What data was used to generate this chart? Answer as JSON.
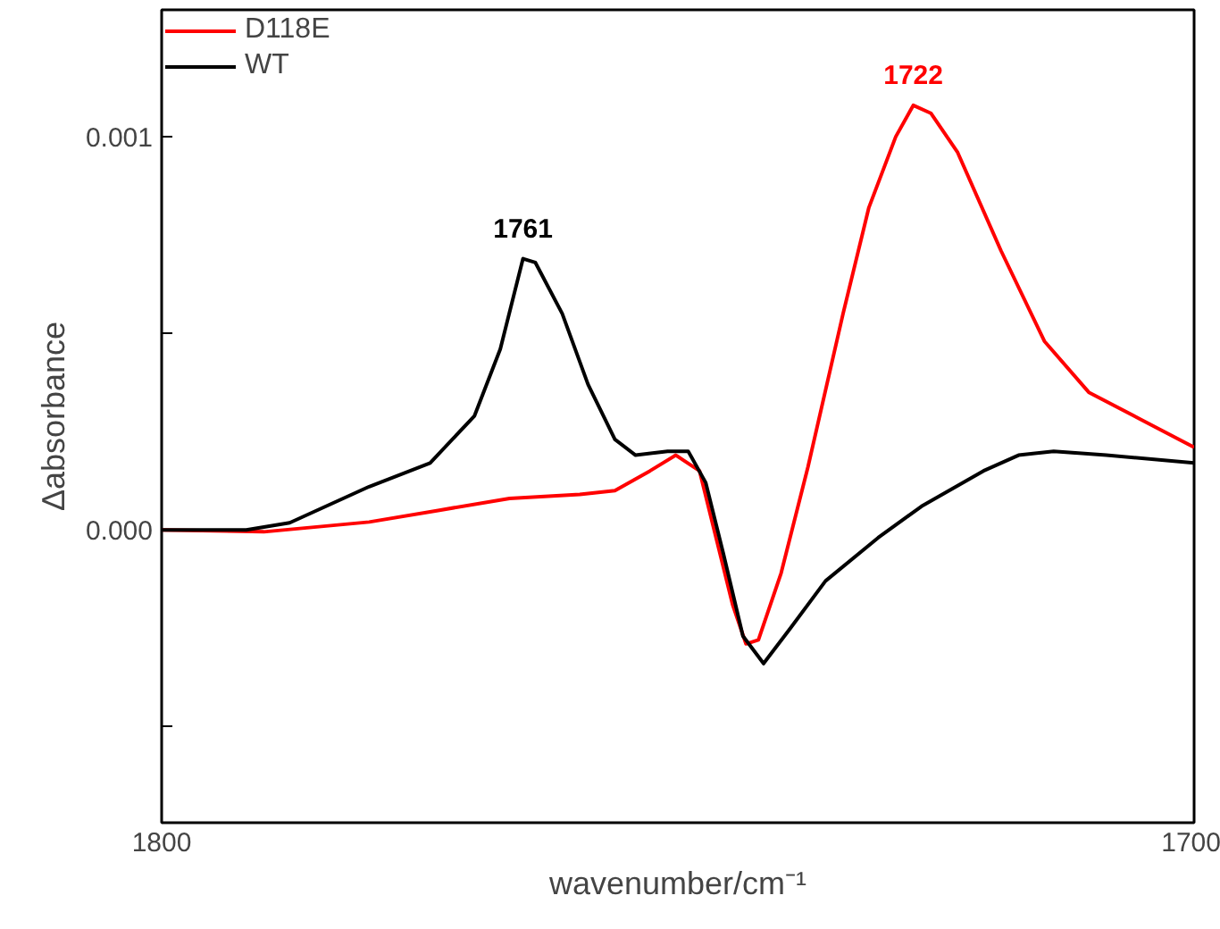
{
  "chart_data": {
    "type": "line",
    "xlabel": "wavenumber/cm⁻¹",
    "ylabel": "Δabsorbance",
    "xlim": [
      1800,
      1700
    ],
    "xticks": [
      1800,
      1700
    ],
    "ylim": [
      -0.000745,
      0.001323
    ],
    "yticks": [
      {
        "value": -0.0005,
        "label": null
      },
      {
        "value": 0,
        "label": "0.000"
      },
      {
        "value": 0.0005,
        "label": null
      },
      {
        "value": 0.001,
        "label": "0.001"
      }
    ],
    "grid": false,
    "legend": "top left",
    "marker": "none",
    "line_style": "solid",
    "series": [
      {
        "name": "D118E",
        "color": "#ff0000",
        "x": [
          1800,
          1790.1,
          1779.9,
          1773.1,
          1766.3,
          1759.5,
          1756.1,
          1752.7,
          1750.2,
          1747.9,
          1746.3,
          1744.7,
          1743.4,
          1742.2,
          1740.0,
          1737.4,
          1734.0,
          1731.5,
          1728.9,
          1727.2,
          1725.5,
          1722.9,
          1718.7,
          1714.5,
          1710.2,
          1705.1,
          1700
        ],
        "values": [
          0,
          -5e-06,
          2e-05,
          5e-05,
          8e-05,
          9e-05,
          0.0001,
          0.00015,
          0.00019,
          0.00015,
          -2e-05,
          -0.00019,
          -0.00029,
          -0.00028,
          -0.00011,
          0.00016,
          0.00055,
          0.00082,
          0.001,
          0.00108,
          0.00106,
          0.00096,
          0.00071,
          0.00048,
          0.00035,
          0.00028,
          0.00021
        ]
      },
      {
        "name": "WT",
        "color": "#000000",
        "x": [
          1800,
          1791.8,
          1787.6,
          1779.9,
          1774.0,
          1769.7,
          1767.2,
          1765.0,
          1763.8,
          1761.2,
          1758.7,
          1756.1,
          1754.1,
          1751.0,
          1749.0,
          1747.3,
          1745.6,
          1743.7,
          1741.7,
          1739.1,
          1735.7,
          1730.6,
          1726.4,
          1720.4,
          1717.0,
          1713.6,
          1708.5,
          1700
        ],
        "values": [
          0,
          0,
          1.8e-05,
          0.00011,
          0.00017,
          0.00029,
          0.00046,
          0.00069,
          0.00068,
          0.00055,
          0.00037,
          0.00023,
          0.00019,
          0.0002,
          0.0002,
          0.00012,
          -6e-05,
          -0.00027,
          -0.00034,
          -0.00025,
          -0.00013,
          -2e-05,
          6e-05,
          0.00015,
          0.00019,
          0.0002,
          0.00019,
          0.00017
        ]
      }
    ],
    "annotations": [
      "1722",
      "1761"
    ]
  }
}
